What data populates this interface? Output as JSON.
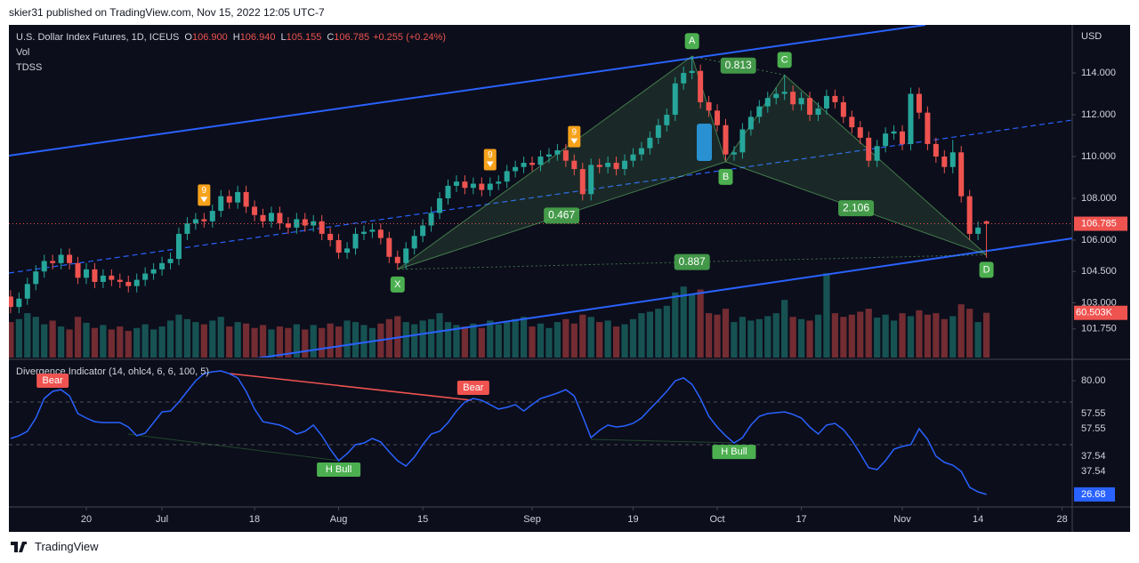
{
  "header": {
    "publisher": "skier31 published on TradingView.com, Nov 15, 2022 12:05 UTC-7",
    "brand": "TradingView"
  },
  "chart_data": [
    {
      "type": "candlestick",
      "title": "U.S. Dollar Index Futures, 1D, ICEUS",
      "ohlc_legend": [
        {
          "key": "O",
          "value": 106.9,
          "label": "106.900"
        },
        {
          "key": "H",
          "value": 106.94,
          "label": "106.940"
        },
        {
          "key": "L",
          "value": 105.155,
          "label": "105.155"
        },
        {
          "key": "C",
          "value": 106.785,
          "label": "106.785"
        }
      ],
      "change": "+0.255 (+0.24%)",
      "studies": [
        "Vol",
        "TDSS"
      ],
      "axis_unit": "USD",
      "up_color": "#26a69a",
      "down_color": "#ef5350",
      "open": [
        103.3,
        102.8,
        103.2,
        103.9,
        104.5,
        105.0,
        104.9,
        105.3,
        104.9,
        104.2,
        104.6,
        104.0,
        104.3,
        104.1,
        104.0,
        103.8,
        104.1,
        104.4,
        104.6,
        104.9,
        105.1,
        106.3,
        106.8,
        107.0,
        106.9,
        107.4,
        108.1,
        107.8,
        108.3,
        107.6,
        107.2,
        106.9,
        107.3,
        106.8,
        106.6,
        107.0,
        106.7,
        106.9,
        106.3,
        106.0,
        105.4,
        105.6,
        106.3,
        106.4,
        106.5,
        106.1,
        105.2,
        104.9,
        105.6,
        106.2,
        106.7,
        107.3,
        108.0,
        108.6,
        108.8,
        108.5,
        108.7,
        108.4,
        108.7,
        108.8,
        109.3,
        109.5,
        109.7,
        109.6,
        110.0,
        110.1,
        110.3,
        109.8,
        109.4,
        108.2,
        109.6,
        109.5,
        109.7,
        109.4,
        109.8,
        110.1,
        110.4,
        110.9,
        111.5,
        112.0,
        113.5,
        114.0,
        114.1,
        112.6,
        112.2,
        111.5,
        110.1,
        110.2,
        111.3,
        111.9,
        112.4,
        112.8,
        113.0,
        113.1,
        112.5,
        112.8,
        112.0,
        112.3,
        112.9,
        112.6,
        111.9,
        111.4,
        110.9,
        109.8,
        110.5,
        111.1,
        111.2,
        110.6,
        113.0,
        112.1,
        110.6,
        110.0,
        109.5,
        110.2,
        108.1,
        106.3,
        106.9
      ],
      "high": [
        103.6,
        103.5,
        104.2,
        104.8,
        105.3,
        105.3,
        105.6,
        105.6,
        105.2,
        104.9,
        104.9,
        104.6,
        104.6,
        104.4,
        104.3,
        104.4,
        104.7,
        104.9,
        105.2,
        105.4,
        106.6,
        107.1,
        107.3,
        107.3,
        107.7,
        108.4,
        108.4,
        108.6,
        108.6,
        107.9,
        107.5,
        107.6,
        107.6,
        107.1,
        107.3,
        107.3,
        107.2,
        107.2,
        106.6,
        106.3,
        105.9,
        106.6,
        106.7,
        106.8,
        106.8,
        106.4,
        105.5,
        105.9,
        106.5,
        107.0,
        107.6,
        108.3,
        108.9,
        109.1,
        109.1,
        109.0,
        109.0,
        109.0,
        109.1,
        109.6,
        109.8,
        110.0,
        110.0,
        110.3,
        110.4,
        110.6,
        110.6,
        110.1,
        109.7,
        109.9,
        109.9,
        110.0,
        110.0,
        110.1,
        110.4,
        110.7,
        111.2,
        111.8,
        112.3,
        113.8,
        114.3,
        114.8,
        114.4,
        112.9,
        112.5,
        111.8,
        110.5,
        111.6,
        112.2,
        112.7,
        113.1,
        113.3,
        113.9,
        113.4,
        113.1,
        113.1,
        112.6,
        113.2,
        113.2,
        112.9,
        112.2,
        111.7,
        111.2,
        110.8,
        111.4,
        111.5,
        111.5,
        113.3,
        113.3,
        112.4,
        110.9,
        110.3,
        110.8,
        110.5,
        108.4,
        106.9,
        106.94
      ],
      "low": [
        102.5,
        102.5,
        102.9,
        103.6,
        104.2,
        104.6,
        104.6,
        104.6,
        103.9,
        103.9,
        103.7,
        103.7,
        103.8,
        103.7,
        103.5,
        103.5,
        103.8,
        104.1,
        104.3,
        104.6,
        104.8,
        106.0,
        106.5,
        106.6,
        106.6,
        107.1,
        107.5,
        107.5,
        107.3,
        106.9,
        106.6,
        106.6,
        106.5,
        106.3,
        106.3,
        106.4,
        106.4,
        106.0,
        105.7,
        105.1,
        105.1,
        105.3,
        106.0,
        106.1,
        105.8,
        104.9,
        104.6,
        104.6,
        105.3,
        105.9,
        106.4,
        107.0,
        107.7,
        108.3,
        108.2,
        108.2,
        108.1,
        108.1,
        108.4,
        108.5,
        109.0,
        109.2,
        109.3,
        109.3,
        109.7,
        109.8,
        109.5,
        109.1,
        107.9,
        107.9,
        109.2,
        109.2,
        109.1,
        109.1,
        109.5,
        109.8,
        110.1,
        110.6,
        111.2,
        111.7,
        113.2,
        113.7,
        112.3,
        111.9,
        111.2,
        109.8,
        109.8,
        109.9,
        111.0,
        111.6,
        112.1,
        112.5,
        112.7,
        112.2,
        112.2,
        111.7,
        111.7,
        112.0,
        112.3,
        111.6,
        111.1,
        110.6,
        109.5,
        109.5,
        110.2,
        110.8,
        110.3,
        110.3,
        111.8,
        110.3,
        109.7,
        109.2,
        109.2,
        107.8,
        106.0,
        106.0,
        105.155
      ],
      "close": [
        102.8,
        103.2,
        103.9,
        104.5,
        105.0,
        104.9,
        105.3,
        104.9,
        104.2,
        104.6,
        104.0,
        104.3,
        104.1,
        104.0,
        103.8,
        104.1,
        104.4,
        104.6,
        104.9,
        105.1,
        106.3,
        106.8,
        107.0,
        106.9,
        107.4,
        108.1,
        107.8,
        108.3,
        107.6,
        107.2,
        106.9,
        107.3,
        106.8,
        106.6,
        107.0,
        106.7,
        106.9,
        106.3,
        106.0,
        105.4,
        105.6,
        106.3,
        106.4,
        106.5,
        106.1,
        105.2,
        104.9,
        105.6,
        106.2,
        106.7,
        107.3,
        108.0,
        108.6,
        108.8,
        108.5,
        108.7,
        108.4,
        108.7,
        108.8,
        109.3,
        109.5,
        109.7,
        109.6,
        110.0,
        110.1,
        110.3,
        109.8,
        109.4,
        108.2,
        109.6,
        109.5,
        109.7,
        109.4,
        109.8,
        110.1,
        110.4,
        110.9,
        111.5,
        112.0,
        113.5,
        114.0,
        114.1,
        112.6,
        112.2,
        111.5,
        110.1,
        110.2,
        111.3,
        111.9,
        112.4,
        112.8,
        113.0,
        113.1,
        112.5,
        112.8,
        112.0,
        112.3,
        112.9,
        112.6,
        111.9,
        111.4,
        110.9,
        109.8,
        110.5,
        111.1,
        111.2,
        110.6,
        113.0,
        112.1,
        110.6,
        110.0,
        109.5,
        110.2,
        108.1,
        106.3,
        106.6,
        106.785
      ],
      "xlim": [
        -0.2,
        126.2
      ],
      "xticks": [
        {
          "value": 9,
          "label": "20"
        },
        {
          "value": 18,
          "label": "Jul"
        },
        {
          "value": 29,
          "label": "18"
        },
        {
          "value": 39,
          "label": "Aug"
        },
        {
          "value": 49,
          "label": "15"
        },
        {
          "value": 62,
          "label": "Sep"
        },
        {
          "value": 74,
          "label": "19"
        },
        {
          "value": 84,
          "label": "Oct"
        },
        {
          "value": 94,
          "label": "17"
        },
        {
          "value": 106,
          "label": "Nov"
        },
        {
          "value": 115,
          "label": "14"
        },
        {
          "value": 125,
          "label": "28"
        }
      ],
      "ylim": [
        100.38,
        116.3
      ],
      "yticks": [
        {
          "value": 101.75,
          "label": "101.750"
        },
        {
          "value": 103,
          "label": "103.000"
        },
        {
          "value": 104.5,
          "label": "104.500"
        },
        {
          "value": 106,
          "label": "106.000"
        },
        {
          "value": 108,
          "label": "108.000"
        },
        {
          "value": 110,
          "label": "110.000"
        },
        {
          "value": 112,
          "label": "112.000"
        },
        {
          "value": 114,
          "label": "114.000"
        }
      ],
      "last_price": {
        "value": 106.785,
        "label": "106.785"
      },
      "volume": {
        "values": [
          48,
          52,
          60,
          55,
          45,
          50,
          42,
          38,
          55,
          47,
          40,
          44,
          38,
          42,
          36,
          40,
          45,
          38,
          42,
          50,
          58,
          52,
          48,
          45,
          50,
          55,
          42,
          48,
          46,
          40,
          44,
          38,
          42,
          40,
          45,
          38,
          44,
          40,
          46,
          42,
          50,
          48,
          44,
          40,
          46,
          52,
          56,
          48,
          45,
          50,
          52,
          60,
          48,
          44,
          42,
          46,
          40,
          50,
          45,
          48,
          52,
          55,
          42,
          46,
          40,
          48,
          52,
          46,
          58,
          55,
          48,
          50,
          42,
          45,
          52,
          60,
          62,
          66,
          70,
          88,
          96,
          85,
          92,
          60,
          58,
          66,
          48,
          55,
          50,
          52,
          56,
          60,
          78,
          55,
          52,
          50,
          58,
          114,
          60,
          55,
          58,
          62,
          66,
          54,
          58,
          50,
          60,
          56,
          64,
          58,
          60,
          52,
          56,
          72,
          66,
          48,
          60.503
        ],
        "ylim": [
          0,
          450
        ],
        "last_label": "60.503K"
      },
      "td_counts": [
        {
          "index": 23,
          "count": 9
        },
        {
          "index": 57,
          "count": 9
        },
        {
          "index": 67,
          "count": 9
        }
      ],
      "pattern": {
        "points": [
          {
            "name": "X",
            "index": 46,
            "price": 104.6
          },
          {
            "name": "A",
            "index": 81,
            "price": 114.8
          },
          {
            "name": "B",
            "index": 85,
            "price": 109.75
          },
          {
            "name": "C",
            "index": 92,
            "price": 113.9
          },
          {
            "name": "D",
            "index": 116,
            "price": 105.3
          }
        ],
        "ratios": [
          0.813,
          0.467,
          2.106,
          0.887
        ]
      }
    },
    {
      "type": "line",
      "title": "Divergence Indicator (14, ohlc4, 6, 6, 100, 5)",
      "color": "#2962ff",
      "values": [
        52.9,
        54.2,
        56.3,
        62.5,
        71.7,
        75,
        75.8,
        72.9,
        64.6,
        62.5,
        60.8,
        60.4,
        60.4,
        60.4,
        58.3,
        54.2,
        55.4,
        60.4,
        65.4,
        65.8,
        70,
        75,
        80,
        83.3,
        84.2,
        84.6,
        83.3,
        81.3,
        75,
        66.7,
        60.8,
        60,
        59.2,
        57.5,
        55,
        56.3,
        59.2,
        54.2,
        47.9,
        42.5,
        45.8,
        50,
        50.8,
        52.9,
        51.3,
        46.7,
        42.5,
        40,
        44.2,
        50,
        55,
        56.3,
        60.4,
        65.8,
        70,
        71.7,
        70.8,
        68.8,
        66.7,
        67.5,
        68.8,
        65.8,
        68.8,
        71.7,
        72.9,
        74.2,
        75.8,
        72.9,
        63.3,
        53.3,
        56.7,
        59.2,
        58.3,
        58.8,
        60,
        62.5,
        66.7,
        70.8,
        75,
        80,
        81.3,
        78.3,
        71.7,
        63.3,
        58.3,
        54.2,
        50.8,
        53.3,
        59.2,
        63.3,
        64.6,
        65,
        65.4,
        64.2,
        62.5,
        58.3,
        55,
        59.2,
        60,
        57.1,
        52.1,
        45.8,
        39.2,
        38.3,
        42.5,
        47.9,
        49.2,
        50,
        57.5,
        52.5,
        44.6,
        41.7,
        40.4,
        37.5,
        30,
        27.9,
        26.68
      ],
      "ylim": [
        20.8,
        89.2
      ],
      "yticks": [
        {
          "value": 80,
          "label": "80.00"
        }
      ],
      "levels": [
        70,
        50
      ],
      "value_labels": [
        {
          "value": 57.55,
          "label": "57.55"
        },
        {
          "value": 57.55,
          "label": "57.55"
        },
        {
          "value": 37.54,
          "label": "37.54"
        },
        {
          "value": 37.54,
          "label": "37.54"
        }
      ],
      "signals": [
        {
          "label": "Bear",
          "index": 5
        },
        {
          "label": "H Bull",
          "index": 39
        },
        {
          "label": "Bear",
          "index": 55
        },
        {
          "label": "H Bull",
          "index": 86
        }
      ]
    }
  ]
}
